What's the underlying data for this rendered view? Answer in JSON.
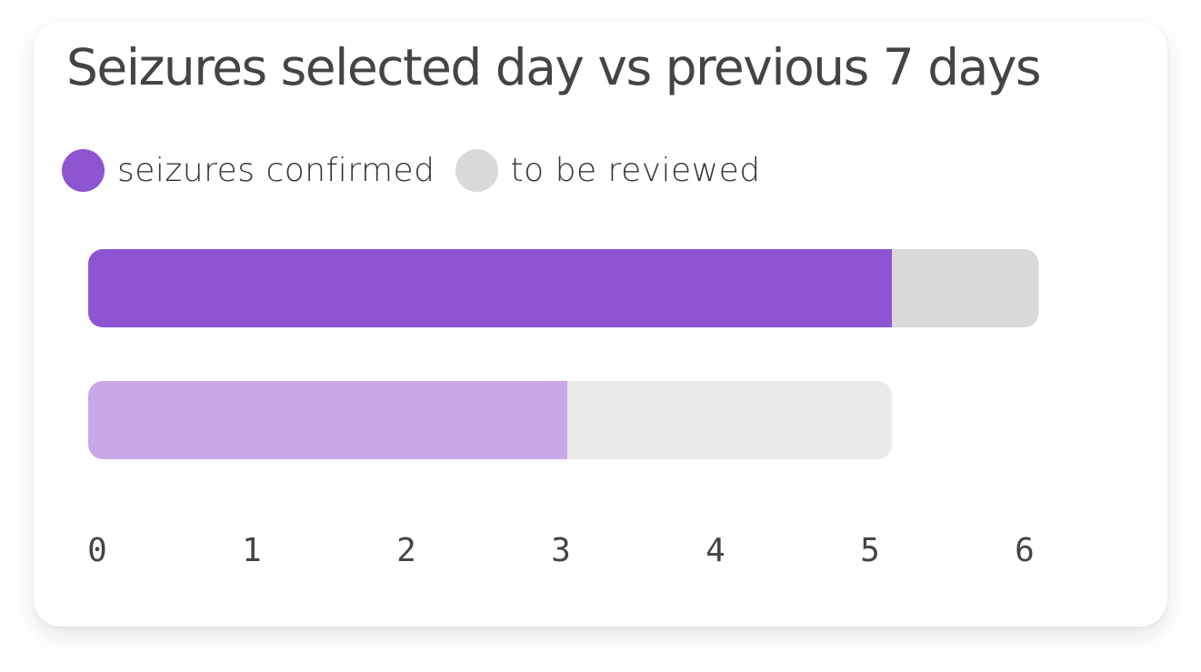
{
  "title": "Seizures selected day vs previous 7 days",
  "legend": [
    {
      "label": "seizures confirmed",
      "color": "#8e55d2"
    },
    {
      "label": "to be reviewed",
      "color": "#d9d9d9"
    }
  ],
  "chart_data": {
    "type": "bar",
    "orientation": "horizontal",
    "stacked": true,
    "title": "Seizures selected day vs previous 7 days",
    "xlabel": "",
    "ylabel": "",
    "xlim": [
      0,
      6
    ],
    "x_ticks": [
      0,
      1,
      2,
      3,
      4,
      5,
      6
    ],
    "grid": false,
    "legend_position": "top-left",
    "bars": [
      {
        "confirmed": 5.2,
        "to_be_reviewed": 0.95,
        "confirmed_color": "#8e55d2",
        "review_color": "#d9d9d9"
      },
      {
        "confirmed": 3.1,
        "to_be_reviewed": 2.1,
        "confirmed_color": "#c8a8e8",
        "review_color": "#eaeaea"
      }
    ]
  }
}
